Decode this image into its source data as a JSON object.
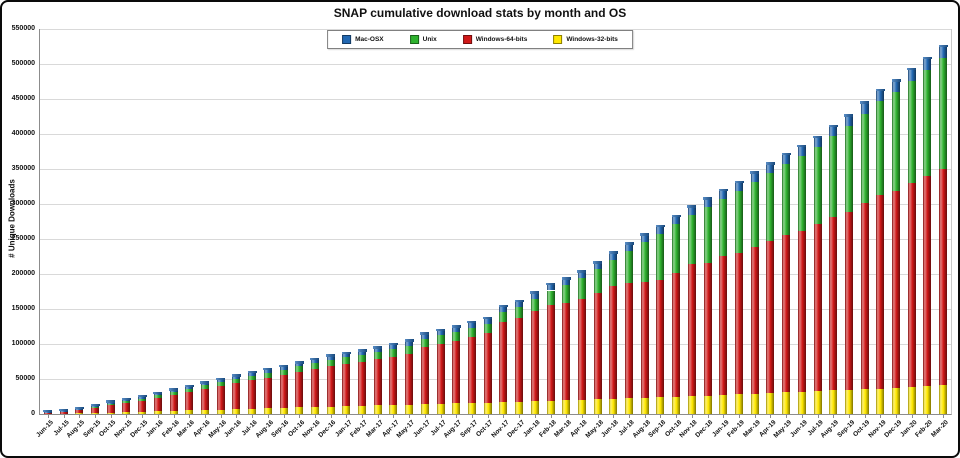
{
  "chart_data": {
    "type": "bar",
    "stacked": true,
    "title": "SNAP cumulative download stats by month and OS",
    "ylabel": "# Unique Downloads",
    "xlabel": "",
    "ylim": [
      0,
      550000
    ],
    "yticks": [
      0,
      50000,
      100000,
      150000,
      200000,
      250000,
      300000,
      350000,
      400000,
      450000,
      500000,
      550000
    ],
    "grid": true,
    "legend_position": "top-center",
    "legend_order": [
      "Mac-OSX",
      "Unix",
      "Windows-64-bits",
      "Windows-32-bits"
    ],
    "stack_order_bottom_to_top": [
      "Windows-32-bits",
      "Windows-64-bits",
      "Unix",
      "Mac-OSX"
    ],
    "categories": [
      "Jun-15",
      "Jul-15",
      "Aug-15",
      "Sep-15",
      "Oct-15",
      "Nov-15",
      "Dec-15",
      "Jan-16",
      "Feb-16",
      "Mar-16",
      "Apr-16",
      "May-16",
      "Jun-16",
      "Jul-16",
      "Aug-16",
      "Sep-16",
      "Oct-16",
      "Nov-16",
      "Dec-16",
      "Jan-17",
      "Feb-17",
      "Mar-17",
      "Apr-17",
      "May-17",
      "Jun-17",
      "Jul-17",
      "Aug-17",
      "Sep-17",
      "Oct-17",
      "Nov-17",
      "Dec-17",
      "Jan-18",
      "Feb-18",
      "Mar-18",
      "Apr-18",
      "May-18",
      "Jun-18",
      "Jul-18",
      "Aug-18",
      "Sep-18",
      "Oct-18",
      "Nov-18",
      "Dec-18",
      "Jan-19",
      "Feb-19",
      "Mar-19",
      "Apr-19",
      "May-19",
      "Jun-19",
      "Jul-19",
      "Aug-19",
      "Sep-19",
      "Oct-19",
      "Nov-19",
      "Dec-19",
      "Jan-20",
      "Feb-20",
      "Mar-20"
    ],
    "series": [
      {
        "name": "Mac-OSX",
        "color": "#2268B2",
        "values": [
          300,
          500,
          800,
          1000,
          1300,
          1500,
          1800,
          2000,
          2200,
          2500,
          2700,
          2900,
          3100,
          3300,
          3500,
          3700,
          3900,
          4100,
          4300,
          4500,
          4700,
          4900,
          5100,
          5300,
          5500,
          5700,
          5900,
          6100,
          6300,
          6600,
          6900,
          7200,
          7500,
          7800,
          8100,
          8400,
          8700,
          9000,
          9300,
          9600,
          9900,
          10200,
          10500,
          10900,
          11300,
          11700,
          12100,
          12500,
          12900,
          13200,
          13500,
          13800,
          14100,
          14400,
          14700,
          15000,
          15300,
          15600
        ]
      },
      {
        "name": "Unix",
        "color": "#2EB22E",
        "values": [
          300,
          500,
          1000,
          1500,
          2000,
          2500,
          3000,
          3500,
          4000,
          4500,
          5000,
          5500,
          6000,
          6500,
          7000,
          7500,
          8000,
          8500,
          9000,
          9500,
          10000,
          10500,
          11000,
          11500,
          12000,
          12500,
          13000,
          13500,
          14000,
          14500,
          16000,
          18000,
          21000,
          25000,
          29000,
          33000,
          38000,
          46000,
          57000,
          66000,
          69000,
          71000,
          80000,
          82000,
          89000,
          92000,
          97000,
          101000,
          106000,
          110000,
          115000,
          122000,
          127000,
          134000,
          141000,
          146000,
          152000,
          159000
        ]
      },
      {
        "name": "Windows-64-bits",
        "color": "#D01818",
        "values": [
          1700,
          2600,
          4400,
          7000,
          10500,
          13200,
          15800,
          19000,
          22700,
          26300,
          30000,
          33700,
          37400,
          40600,
          43800,
          47000,
          50700,
          54400,
          58100,
          60300,
          62500,
          65700,
          68900,
          72600,
          81300,
          85000,
          89300,
          94100,
          98900,
          114600,
          119600,
          128600,
          136600,
          139600,
          144600,
          152600,
          160600,
          164600,
          165600,
          167600,
          177600,
          188600,
          189500,
          198100,
          201700,
          210300,
          216900,
          225000,
          230100,
          237800,
          247700,
          254600,
          266500,
          276400,
          282300,
          292000,
          300200,
          308400
        ]
      },
      {
        "name": "Windows-32-bits",
        "color": "#FFE800",
        "values": [
          200,
          400,
          800,
          1500,
          2200,
          2800,
          3400,
          4000,
          4600,
          5200,
          5800,
          6400,
          7000,
          7600,
          8200,
          8800,
          9400,
          10000,
          10600,
          11200,
          11800,
          12400,
          13000,
          13600,
          14200,
          14800,
          15300,
          15800,
          16300,
          16800,
          17500,
          18200,
          18900,
          19600,
          20300,
          21000,
          21700,
          22400,
          23100,
          23800,
          24500,
          25200,
          26000,
          27000,
          28000,
          29000,
          30000,
          31000,
          32000,
          33000,
          33800,
          34600,
          35400,
          36200,
          37000,
          38000,
          39500,
          41000
        ]
      }
    ]
  }
}
